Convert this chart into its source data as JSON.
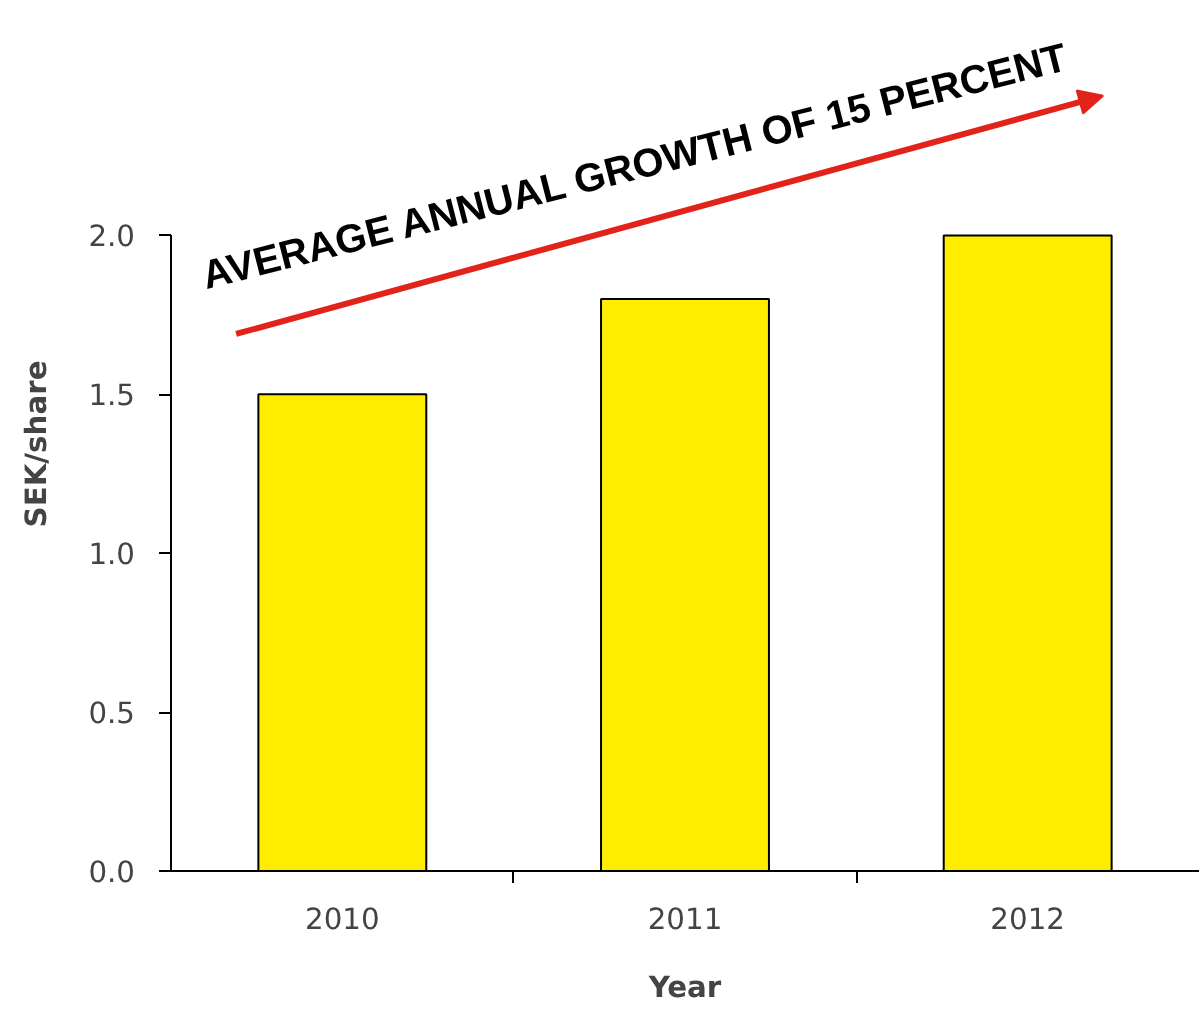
{
  "chart_data": {
    "type": "bar",
    "xlabel": "Year",
    "ylabel": "SEK/share",
    "categories": [
      "2010",
      "2011",
      "2012"
    ],
    "values": [
      1.5,
      1.8,
      2.0
    ],
    "color": "#ffed00",
    "ylim": [
      0,
      2.0
    ],
    "yticks": [
      {
        "value": 0,
        "label": "0.0"
      },
      {
        "value": 0.5,
        "label": "0.5"
      },
      {
        "value": 1.0,
        "label": "1.0"
      },
      {
        "value": 1.5,
        "label": "1.5"
      },
      {
        "value": 2.0,
        "label": "2.0"
      }
    ],
    "grid": false,
    "annotations": [
      "AVERAGE ANNUAL GROWTH OF 15 PERCENT"
    ]
  }
}
